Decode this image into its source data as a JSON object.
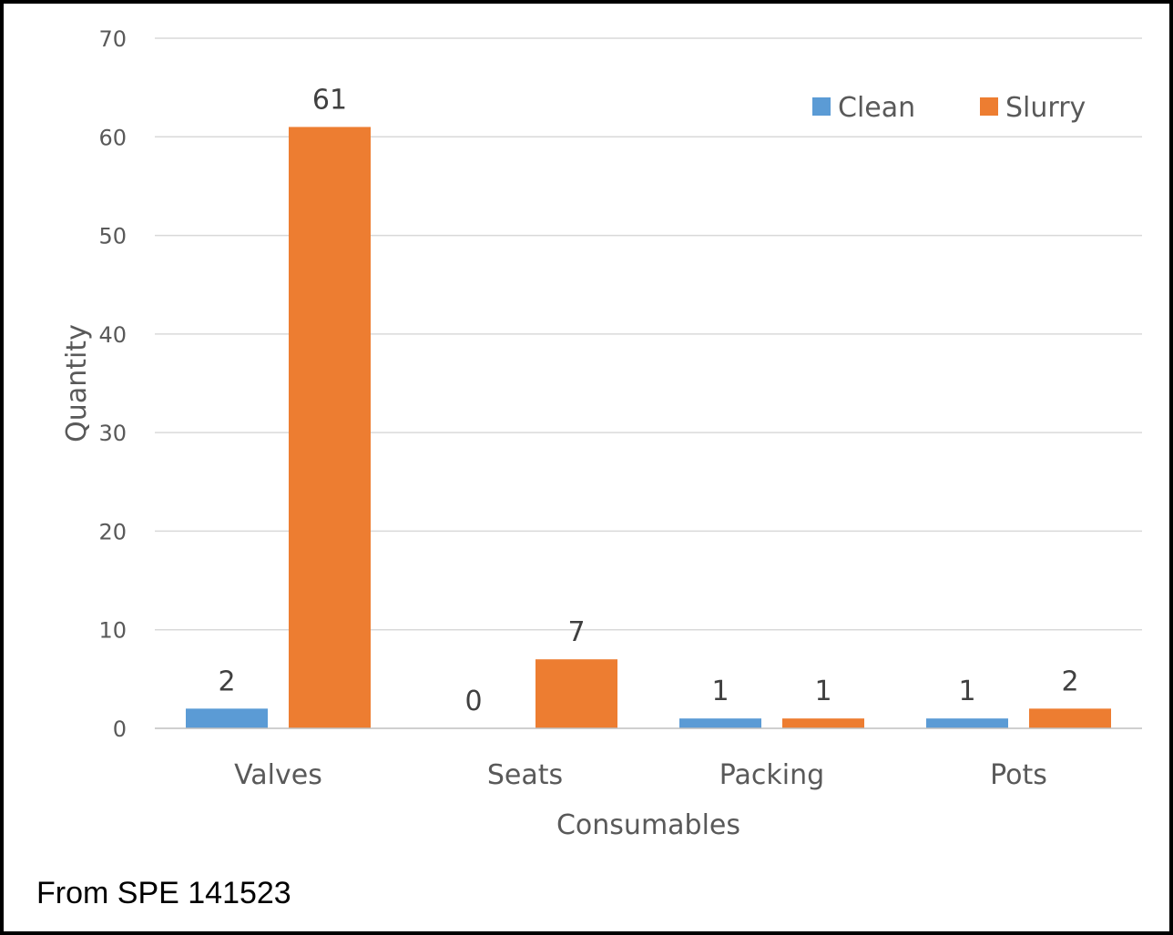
{
  "chart_data": {
    "type": "bar",
    "categories": [
      "Valves",
      "Seats",
      "Packing",
      "Pots"
    ],
    "series": [
      {
        "name": "Clean",
        "values": [
          2,
          0,
          1,
          1
        ],
        "color": "#5B9BD5"
      },
      {
        "name": "Slurry",
        "values": [
          61,
          7,
          1,
          2
        ],
        "color": "#ED7D31"
      }
    ],
    "data_labels": [
      [
        "2",
        "0",
        "1",
        "1"
      ],
      [
        "61",
        "7",
        "1",
        "2"
      ]
    ],
    "title": "",
    "xlabel": "Consumables",
    "ylabel": "Quantity",
    "ylim": [
      0,
      70
    ],
    "yticks": [
      0,
      10,
      20,
      30,
      40,
      50,
      60,
      70
    ],
    "grid": true,
    "legend_position": "top-right"
  },
  "footer": {
    "source": "From SPE 141523"
  },
  "colors": {
    "gridline": "#D9D9D9",
    "axis": "#BFBFBF",
    "border": "#000000"
  }
}
